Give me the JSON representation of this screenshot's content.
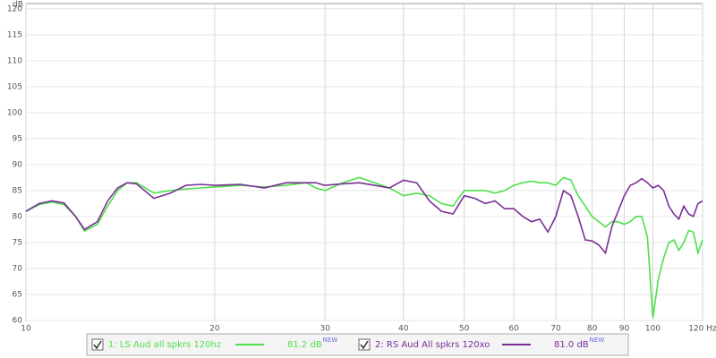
{
  "chart_data": {
    "type": "line",
    "y_label": "dB",
    "x": [
      10,
      10.5,
      11,
      11.5,
      12,
      12.4,
      13,
      13.5,
      14,
      14.5,
      15,
      16,
      17,
      18,
      19,
      20,
      22,
      24,
      26,
      28,
      29,
      30,
      32,
      34,
      36,
      38,
      40,
      42,
      44,
      46,
      48,
      50,
      52,
      54,
      56,
      58,
      60,
      62,
      64,
      66,
      68,
      70,
      72,
      74,
      76,
      78,
      80,
      82,
      84,
      86,
      88,
      90,
      92,
      94,
      96,
      98,
      100,
      102,
      104,
      106,
      108,
      110,
      112,
      114,
      116,
      118,
      120
    ],
    "series": [
      {
        "name": "1: LS Aud all spkrs 120hz",
        "color": "#4ee04a",
        "level": "81.2 dB",
        "badge": "NEW",
        "values": [
          81,
          82.3,
          82.8,
          82.3,
          80,
          77.2,
          78.5,
          82,
          85,
          86.5,
          86.5,
          84.5,
          85,
          85.3,
          85.5,
          85.7,
          86,
          85.7,
          86,
          86.5,
          85.5,
          85,
          86.5,
          87.5,
          86.5,
          85.5,
          84,
          84.5,
          84,
          82.5,
          82,
          85,
          85,
          85,
          84.5,
          85,
          86,
          86.5,
          86.8,
          86.5,
          86.5,
          86,
          87.5,
          87,
          84,
          82,
          80,
          79,
          78,
          79,
          79,
          78.5,
          79,
          80,
          80,
          76,
          60.5,
          68,
          72,
          75,
          75.5,
          73.5,
          75,
          77.3,
          77,
          73,
          75.5
        ]
      },
      {
        "name": "2: RS Aud All spkrs 120xo",
        "color": "#7b2e98",
        "level": "81.0 dB",
        "badge": "NEW",
        "values": [
          81,
          82.5,
          83,
          82.6,
          80,
          77.5,
          79,
          83,
          85.5,
          86.5,
          86.3,
          83.5,
          84.5,
          86,
          86.2,
          86,
          86.2,
          85.5,
          86.5,
          86.5,
          86.5,
          86,
          86.3,
          86.5,
          86,
          85.5,
          87,
          86.5,
          83,
          81,
          80.5,
          84,
          83.5,
          82.5,
          83,
          81.5,
          81.5,
          80,
          79,
          79.5,
          77,
          80,
          85,
          84,
          80,
          75.5,
          75.3,
          74.5,
          73,
          78,
          81,
          84,
          86,
          86.5,
          87.3,
          86.5,
          85.5,
          86,
          85,
          82,
          80.5,
          79.5,
          82,
          80.5,
          80,
          82.5,
          83
        ]
      }
    ],
    "xlim": [
      10,
      120
    ],
    "x_log": true,
    "xticks": [
      10,
      20,
      30,
      40,
      50,
      60,
      70,
      80,
      90,
      100,
      {
        "value": 120,
        "label": "120 Hz"
      }
    ],
    "ylim": [
      60,
      121
    ],
    "yticks": [
      60,
      65,
      70,
      75,
      80,
      85,
      90,
      95,
      100,
      105,
      110,
      115,
      120
    ],
    "grid": true
  }
}
